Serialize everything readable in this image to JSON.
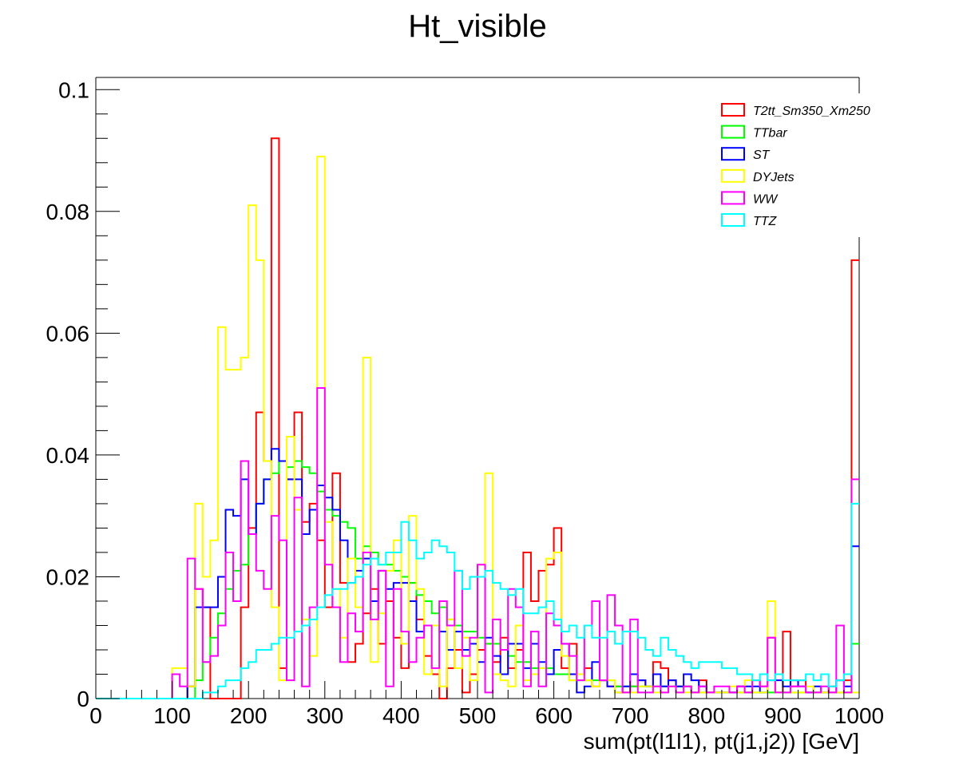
{
  "chart_data": {
    "type": "step",
    "title": "Ht_visible",
    "xlabel": "sum(pt(l1l1), pt(j1,j2)) [GeV]",
    "ylabel": "",
    "xlim": [
      0,
      1000
    ],
    "ylim": [
      0,
      0.102
    ],
    "x_ticks": [
      0,
      100,
      200,
      300,
      400,
      500,
      600,
      700,
      800,
      900,
      1000
    ],
    "x_tick_labels": [
      "0",
      "100",
      "200",
      "300",
      "400",
      "500",
      "600",
      "700",
      "800",
      "900",
      "1000"
    ],
    "y_ticks": [
      0,
      0.02,
      0.04,
      0.06,
      0.08,
      0.1
    ],
    "y_tick_labels": [
      "0",
      "0.02",
      "0.04",
      "0.06",
      "0.08",
      "0.1"
    ],
    "grid": false,
    "legend_position": "top-right",
    "bin_width": 10,
    "bin_start": 0,
    "series": [
      {
        "name": "T2tt_Sm350_Xm250",
        "color": "#ff0000",
        "values": [
          0,
          0,
          0,
          0,
          0,
          0,
          0,
          0,
          0,
          0,
          0,
          0,
          0.002,
          0.018,
          0.015,
          0,
          0,
          0,
          0,
          0.015,
          0.028,
          0.047,
          0.039,
          0.092,
          0.005,
          0.036,
          0.047,
          0.029,
          0.032,
          0.026,
          0.015,
          0.037,
          0.019,
          0.006,
          0.009,
          0.014,
          0.018,
          0.009,
          0.016,
          0.01,
          0.005,
          0.019,
          0.013,
          0.007,
          0.004,
          0,
          0.005,
          0.008,
          0.001,
          0.004,
          0.008,
          0.009,
          0.006,
          0.01,
          0.005,
          0.008,
          0.024,
          0.016,
          0.021,
          0.022,
          0.028,
          0.005,
          0.009,
          0.004,
          0.005,
          0.002,
          0.003,
          0.002,
          0.002,
          0.001,
          0.002,
          0.003,
          0.002,
          0.006,
          0.005,
          0.003,
          0.002,
          0.002,
          0.001,
          0.003,
          0.001,
          0.001,
          0.001,
          0.001,
          0.002,
          0.001,
          0.003,
          0.002,
          0.01,
          0.001,
          0.011,
          0.002,
          0.003,
          0.001,
          0.001,
          0.001,
          0.002,
          0.003,
          0.003,
          0.072
        ]
      },
      {
        "name": "TTbar",
        "color": "#00ff00",
        "values": [
          0,
          0,
          0,
          0,
          0,
          0,
          0,
          0,
          0,
          0,
          0,
          0,
          0,
          0.003,
          0.006,
          0.01,
          0.014,
          0.018,
          0.021,
          0.022,
          0.027,
          0.032,
          0.036,
          0.037,
          0.039,
          0.038,
          0.039,
          0.038,
          0.037,
          0.034,
          0.031,
          0.03,
          0.029,
          0.028,
          0.023,
          0.025,
          0.024,
          0.022,
          0.022,
          0.021,
          0.02,
          0.019,
          0.017,
          0.016,
          0.014,
          0.015,
          0.013,
          0.012,
          0.011,
          0.011,
          0.01,
          0.009,
          0.009,
          0.008,
          0.007,
          0.006,
          0.006,
          0.005,
          0.005,
          0.005,
          0.004,
          0.004,
          0.003,
          0.003,
          0.003,
          0.003,
          0.003,
          0.003,
          0.002,
          0.002,
          0.002,
          0.002,
          0.002,
          0.002,
          0.002,
          0.002,
          0.002,
          0.002,
          0.001,
          0.001,
          0.001,
          0.001,
          0.001,
          0.001,
          0.001,
          0.001,
          0.001,
          0.001,
          0.001,
          0.001,
          0.001,
          0.001,
          0.001,
          0.001,
          0.001,
          0.001,
          0.001,
          0.001,
          0.001,
          0.009
        ]
      },
      {
        "name": "ST",
        "color": "#0000ff",
        "values": [
          0,
          0,
          0,
          0,
          0,
          0,
          0,
          0,
          0,
          0,
          0,
          0,
          0.002,
          0.015,
          0.015,
          0.015,
          0.02,
          0.031,
          0.03,
          0.036,
          0.027,
          0.032,
          0.036,
          0.041,
          0.039,
          0.036,
          0.036,
          0.027,
          0.031,
          0.035,
          0.033,
          0.031,
          0.026,
          0.019,
          0.021,
          0.023,
          0.016,
          0.021,
          0.018,
          0.019,
          0.019,
          0.016,
          0.011,
          0.012,
          0.012,
          0.011,
          0.008,
          0.011,
          0.008,
          0.009,
          0.006,
          0.01,
          0.007,
          0.004,
          0.009,
          0.009,
          0.005,
          0.009,
          0.006,
          0.004,
          0.008,
          0.009,
          0.004,
          0.001,
          0.002,
          0.006,
          0.003,
          0.002,
          0.001,
          0.002,
          0.004,
          0.003,
          0.002,
          0.004,
          0.002,
          0.003,
          0.002,
          0.004,
          0.003,
          0.002,
          0.001,
          0.001,
          0.001,
          0.001,
          0.002,
          0.002,
          0.002,
          0.001,
          0.003,
          0.003,
          0.002,
          0.003,
          0.002,
          0.001,
          0.002,
          0.001,
          0.001,
          0.003,
          0.002,
          0.025
        ]
      },
      {
        "name": "DYJets",
        "color": "#ffff00",
        "values": [
          0,
          0,
          0,
          0,
          0,
          0,
          0,
          0,
          0,
          0,
          0.005,
          0.005,
          0.002,
          0.032,
          0.02,
          0.026,
          0.061,
          0.054,
          0.054,
          0.056,
          0.081,
          0.072,
          0.039,
          0.015,
          0.003,
          0.043,
          0.031,
          0.013,
          0.007,
          0.089,
          0.029,
          0.018,
          0.01,
          0.023,
          0.015,
          0.056,
          0.006,
          0.014,
          0.021,
          0.026,
          0.009,
          0.03,
          0.018,
          0.004,
          0.012,
          0.002,
          0.013,
          0.005,
          0.01,
          0.003,
          0.022,
          0.037,
          0.004,
          0.003,
          0.002,
          0.012,
          0.003,
          0.004,
          0.005,
          0.023,
          0.024,
          0.007,
          0.003,
          0.004,
          0.003,
          0.002,
          0.003,
          0.003,
          0.001,
          0.001,
          0.001,
          0.002,
          0.002,
          0.001,
          0.001,
          0.002,
          0.001,
          0.001,
          0.001,
          0.001,
          0.001,
          0.001,
          0.001,
          0.002,
          0.001,
          0.003,
          0.001,
          0.001,
          0.016,
          0.001,
          0.001,
          0.001,
          0.001,
          0.002,
          0.001,
          0.001,
          0.001,
          0.001,
          0.001,
          0.001
        ]
      },
      {
        "name": "WW",
        "color": "#ff00ff",
        "values": [
          0,
          0,
          0,
          0,
          0,
          0,
          0,
          0,
          0,
          0,
          0.004,
          0.002,
          0.023,
          0.018,
          0.006,
          0.007,
          0.012,
          0.024,
          0.016,
          0.039,
          0.027,
          0.021,
          0.018,
          0.03,
          0.026,
          0.003,
          0.033,
          0.002,
          0.015,
          0.051,
          0.022,
          0.015,
          0.006,
          0.014,
          0.011,
          0.024,
          0.013,
          0.021,
          0.002,
          0.018,
          0.011,
          0.006,
          0.01,
          0.012,
          0.005,
          0.016,
          0.012,
          0.021,
          0.007,
          0.01,
          0.022,
          0.001,
          0.013,
          0.008,
          0.018,
          0.015,
          0.002,
          0.011,
          0.002,
          0.014,
          0.012,
          0.009,
          0.007,
          0.003,
          0.012,
          0.016,
          0.003,
          0.017,
          0.012,
          0.001,
          0.013,
          0.001,
          0.001,
          0.002,
          0.001,
          0.002,
          0.001,
          0.002,
          0.001,
          0.002,
          0.001,
          0.002,
          0.002,
          0.001,
          0.002,
          0.001,
          0.003,
          0.002,
          0.01,
          0.001,
          0.001,
          0.002,
          0.002,
          0.001,
          0.001,
          0.002,
          0.001,
          0.012,
          0.001,
          0.036
        ]
      },
      {
        "name": "TTZ",
        "color": "#00ffff",
        "values": [
          0,
          0,
          0,
          0,
          0,
          0,
          0,
          0,
          0,
          0,
          0,
          0,
          0,
          0,
          0.001,
          0.001,
          0.002,
          0.003,
          0.003,
          0.005,
          0.006,
          0.008,
          0.008,
          0.009,
          0.01,
          0.01,
          0.011,
          0.012,
          0.013,
          0.015,
          0.017,
          0.018,
          0.018,
          0.019,
          0.02,
          0.022,
          0.023,
          0.022,
          0.024,
          0.024,
          0.029,
          0.026,
          0.023,
          0.024,
          0.026,
          0.025,
          0.024,
          0.021,
          0.018,
          0.02,
          0.02,
          0.021,
          0.019,
          0.018,
          0.017,
          0.018,
          0.014,
          0.014,
          0.015,
          0.016,
          0.013,
          0.011,
          0.012,
          0.01,
          0.012,
          0.01,
          0.01,
          0.011,
          0.009,
          0.011,
          0.011,
          0.01,
          0.008,
          0.007,
          0.01,
          0.008,
          0.007,
          0.006,
          0.005,
          0.006,
          0.006,
          0.006,
          0.005,
          0.005,
          0.004,
          0.004,
          0.003,
          0.004,
          0.003,
          0.004,
          0.003,
          0.003,
          0.003,
          0.004,
          0.003,
          0.004,
          0.002,
          0.003,
          0.004,
          0.032
        ]
      }
    ]
  }
}
